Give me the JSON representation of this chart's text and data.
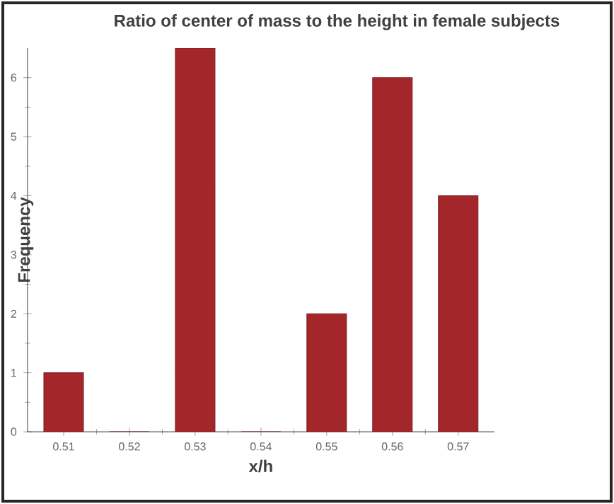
{
  "chart_data": {
    "type": "bar",
    "title": "Ratio of center of mass to the height in female subjects",
    "xlabel": "x/h",
    "ylabel": "Frequency",
    "categories": [
      "0.51",
      "0.52",
      "0.53",
      "0.54",
      "0.55",
      "0.56",
      "0.57"
    ],
    "values": [
      1,
      0,
      6.5,
      0,
      2,
      6,
      4
    ],
    "color": "#a3262a",
    "ylim": [
      0,
      6.5
    ],
    "yticks": [
      0,
      1,
      2,
      3,
      4,
      5,
      6
    ],
    "grid": false
  }
}
